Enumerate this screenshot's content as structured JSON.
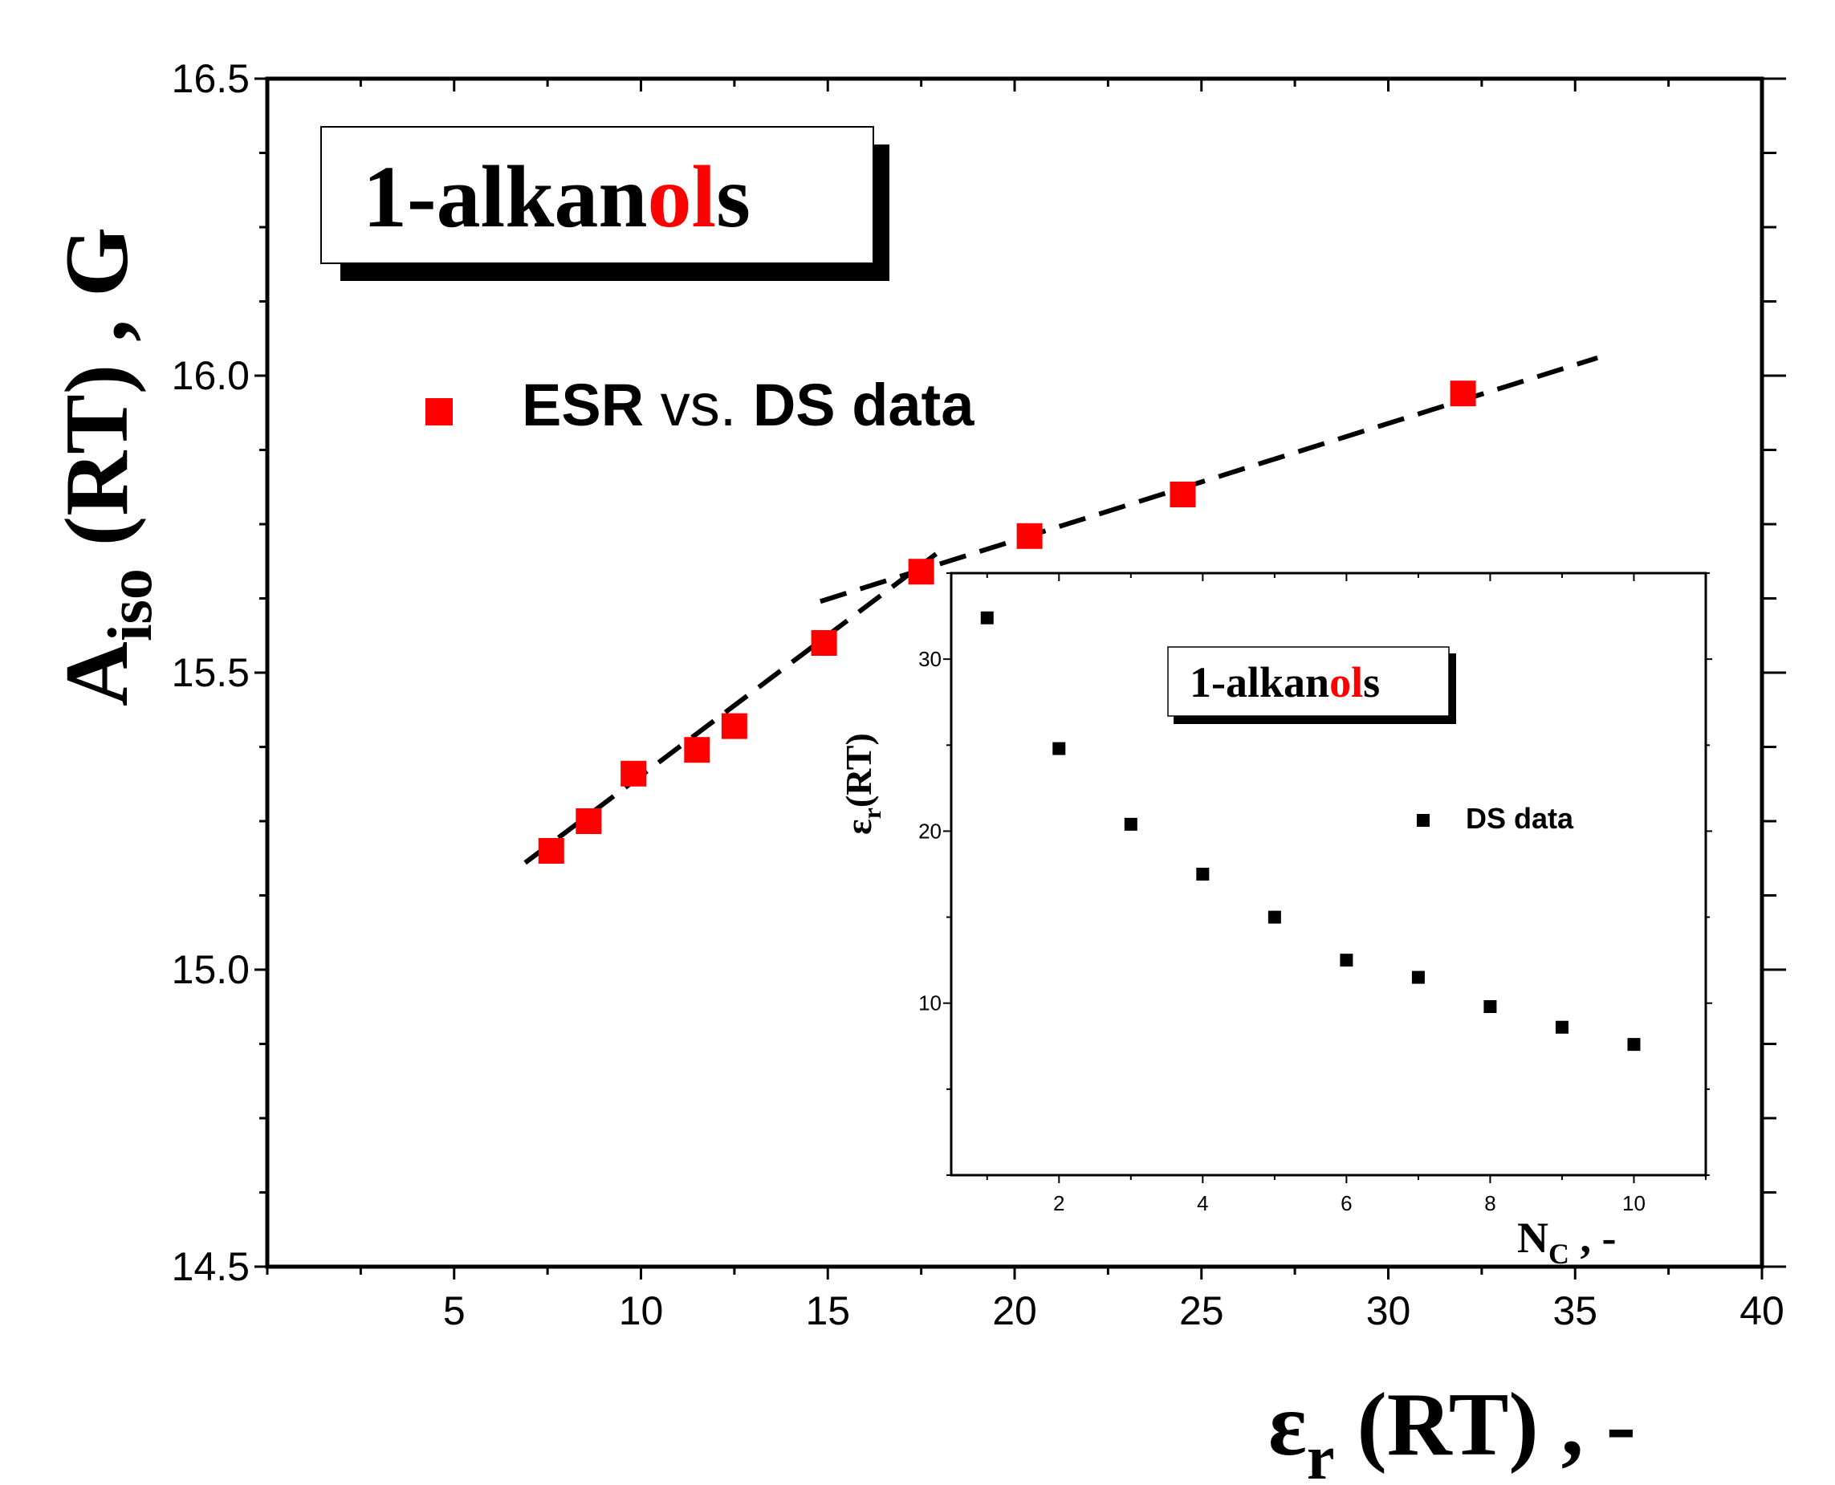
{
  "chart_data": [
    {
      "type": "scatter",
      "title_box": {
        "prefix": "1-alkan",
        "highlight": "ol",
        "suffix": "s",
        "highlight_color": "#ff0000"
      },
      "xlabel": {
        "symbol": "ε",
        "subscript": "r",
        "text": " (RT) , -"
      },
      "ylabel": {
        "symbol": "A",
        "subscript": "iso",
        "text": " (RT) , G"
      },
      "xlim": [
        0,
        40
      ],
      "ylim": [
        14.5,
        16.5
      ],
      "x_ticks": [
        "5",
        "10",
        "15",
        "20",
        "25",
        "30",
        "35",
        "40"
      ],
      "y_ticks": [
        "14.5",
        "15.0",
        "15.5",
        "16.0",
        "16.5"
      ],
      "legend": {
        "label_bold1": "ESR",
        "label_mid": " vs. ",
        "label_bold2": "DS data",
        "position": "top-left"
      },
      "marker_color": "#ff0000",
      "series": [
        {
          "name": "ESR vs. DS data",
          "x": [
            7.6,
            8.6,
            9.8,
            11.5,
            12.5,
            14.9,
            17.5,
            20.4,
            24.5,
            32.0
          ],
          "y": [
            15.2,
            15.25,
            15.33,
            15.37,
            15.41,
            15.55,
            15.67,
            15.73,
            15.8,
            15.97
          ]
        }
      ],
      "fit_lines": [
        {
          "x": [
            6.9,
            17.9
          ],
          "y": [
            15.18,
            15.7
          ],
          "style": "dashed"
        },
        {
          "x": [
            14.8,
            35.6
          ],
          "y": [
            15.62,
            16.03
          ],
          "style": "dashed"
        }
      ]
    },
    {
      "type": "scatter",
      "inset": true,
      "title_box": {
        "prefix": "1-alkan",
        "highlight": "ol",
        "suffix": "s",
        "highlight_color": "#ff0000"
      },
      "xlabel": {
        "symbol": "N",
        "subscript": "C",
        "text": " , -"
      },
      "ylabel": {
        "symbol": "ε",
        "subscript": "r",
        "text": "(RT)"
      },
      "xlim": [
        0.5,
        11
      ],
      "ylim": [
        0,
        35
      ],
      "x_ticks": [
        "2",
        "4",
        "6",
        "8",
        "10"
      ],
      "y_ticks": [
        "10",
        "20",
        "30"
      ],
      "legend": {
        "label": "DS data",
        "position": "right"
      },
      "marker_color": "#000000",
      "series": [
        {
          "name": "DS data",
          "x": [
            1,
            2,
            3,
            4,
            5,
            6,
            7,
            8,
            9,
            10
          ],
          "y": [
            32.4,
            24.8,
            20.4,
            17.5,
            15.0,
            12.5,
            11.5,
            9.8,
            8.6,
            7.6
          ]
        }
      ]
    }
  ]
}
